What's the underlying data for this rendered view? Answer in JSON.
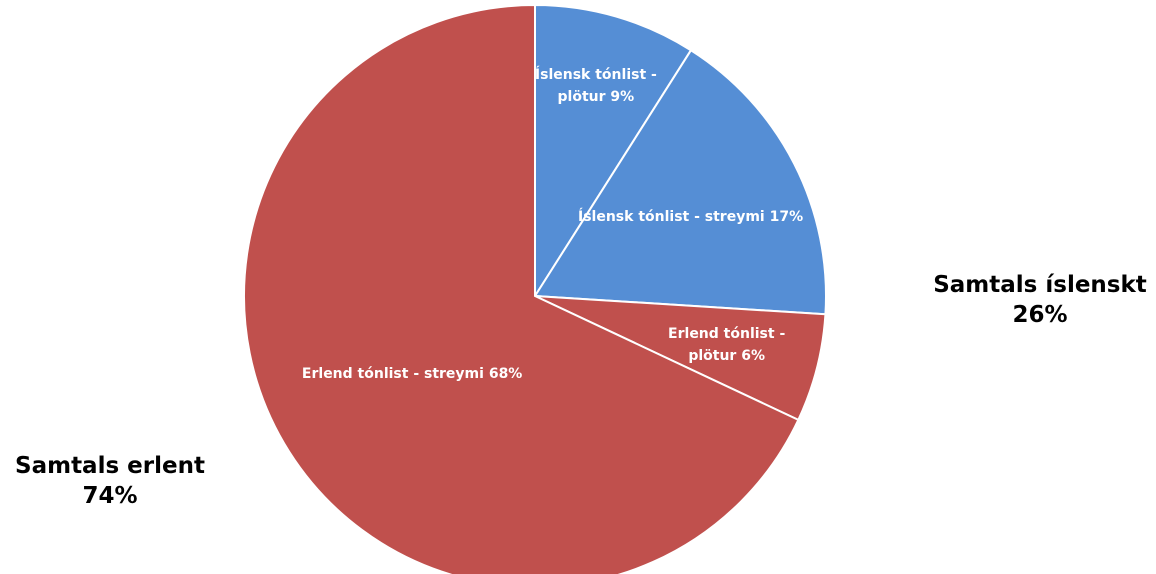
{
  "chart_data": {
    "type": "pie",
    "categories": [
      "Íslensk tónlist - plötur",
      "Íslensk tónlist - streymi",
      "Erlend tónlist - plötur",
      "Erlend tónlist - streymi"
    ],
    "values": [
      9,
      17,
      6,
      68
    ],
    "value_labels": [
      "9%",
      "17%",
      "6%",
      "68%"
    ],
    "colors": [
      "#558ed5",
      "#558ed5",
      "#c0504d",
      "#c0504d"
    ],
    "annotations": [
      "Samtals íslenskt 26%",
      "Samtals erlent 74%"
    ]
  }
}
